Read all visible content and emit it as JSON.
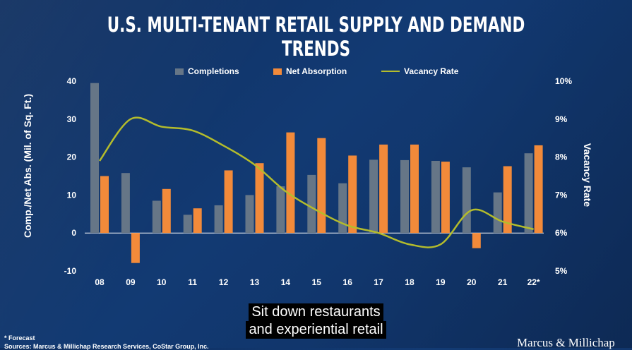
{
  "colors": {
    "completions": "#667687",
    "net_absorption": "#f28a3a",
    "vacancy_rate": "#b4bc2c"
  },
  "chart_data": {
    "type": "bar",
    "title": "U.S. MULTI-TENANT RETAIL SUPPLY AND DEMAND TRENDS",
    "categories": [
      "08",
      "09",
      "10",
      "11",
      "12",
      "13",
      "14",
      "15",
      "16",
      "17",
      "18",
      "19",
      "20",
      "21",
      "22*"
    ],
    "series": [
      {
        "name": "Completions",
        "type": "bar",
        "axis": "left",
        "values": [
          39.5,
          15.8,
          8.5,
          4.8,
          7.3,
          10.0,
          12.3,
          15.3,
          13.1,
          19.3,
          19.2,
          19.0,
          17.3,
          10.7,
          21.0
        ]
      },
      {
        "name": "Net Absorption",
        "type": "bar",
        "axis": "left",
        "values": [
          15.0,
          -7.9,
          11.6,
          6.5,
          16.5,
          18.4,
          26.5,
          25.0,
          20.4,
          23.3,
          23.3,
          18.8,
          -4.0,
          17.6,
          23.1
        ]
      },
      {
        "name": "Vacancy Rate",
        "type": "line",
        "axis": "right",
        "values": [
          7.9,
          9.0,
          8.8,
          8.7,
          8.3,
          7.8,
          7.1,
          6.6,
          6.2,
          6.0,
          5.7,
          5.7,
          6.6,
          6.3,
          6.1
        ]
      }
    ],
    "ylabel": "Comp./Net Abs. (Mil. of Sq. Ft.)",
    "ylim": [
      -10,
      40
    ],
    "yticks": [
      -10,
      0,
      10,
      20,
      30,
      40
    ],
    "y2label": "Vacancy Rate",
    "y2lim": [
      5,
      10
    ],
    "y2ticks": [
      "5%",
      "6%",
      "7%",
      "8%",
      "9%",
      "10%"
    ],
    "grid": false,
    "legend": "top-center"
  },
  "footnote": "* Forecast",
  "sources": "Sources: Marcus & Millichap Research Services, CoStar Group, Inc.",
  "caption_lines": [
    "Sit down restaurants",
    "and experiential retail"
  ],
  "logo_text": "Marcus & Millichap"
}
